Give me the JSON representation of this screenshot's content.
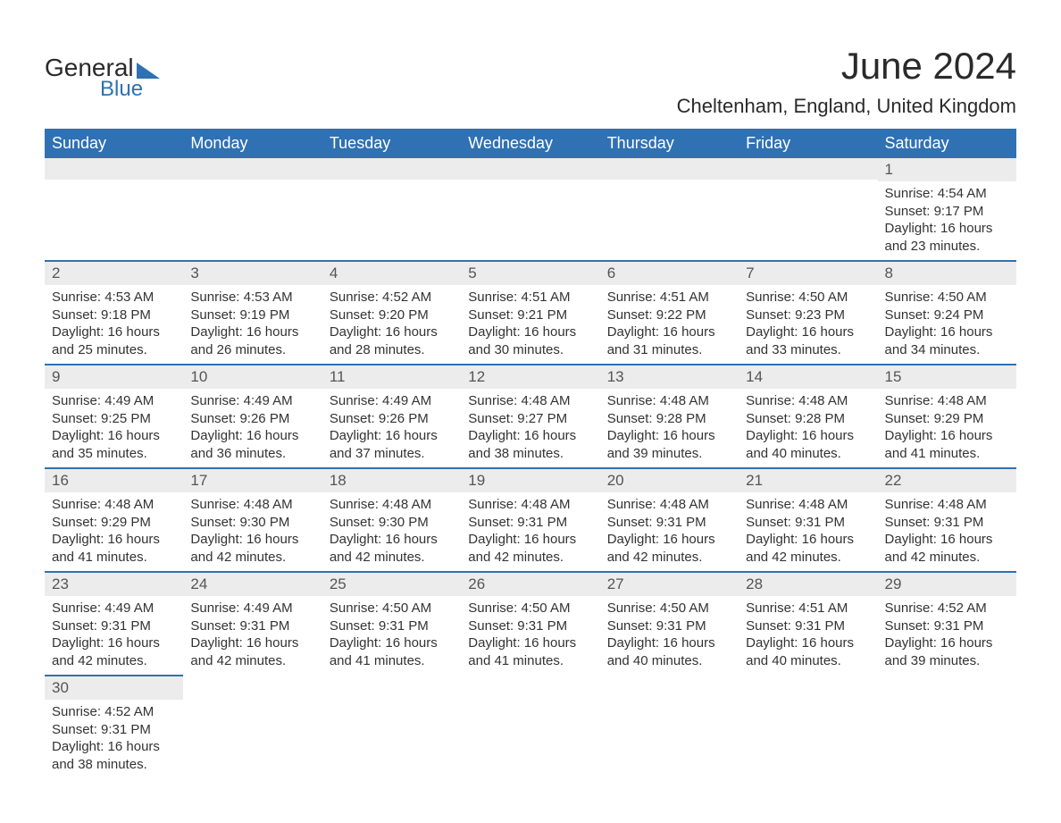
{
  "logo": {
    "general": "General",
    "blue": "Blue"
  },
  "title": "June 2024",
  "location": "Cheltenham, England, United Kingdom",
  "style": {
    "header_bg": "#2f71b3",
    "header_text": "#ffffff",
    "daynum_bg": "#ececec",
    "daynum_text": "#555555",
    "row_border": "#2f71b3",
    "body_text": "#333333",
    "th_fontsize": 18,
    "body_fontsize": 15,
    "title_fontsize": 42,
    "location_fontsize": 22
  },
  "day_names": [
    "Sunday",
    "Monday",
    "Tuesday",
    "Wednesday",
    "Thursday",
    "Friday",
    "Saturday"
  ],
  "weeks": [
    [
      null,
      null,
      null,
      null,
      null,
      null,
      {
        "n": "1",
        "sr": "Sunrise: 4:54 AM",
        "ss": "Sunset: 9:17 PM",
        "d1": "Daylight: 16 hours",
        "d2": "and 23 minutes."
      }
    ],
    [
      {
        "n": "2",
        "sr": "Sunrise: 4:53 AM",
        "ss": "Sunset: 9:18 PM",
        "d1": "Daylight: 16 hours",
        "d2": "and 25 minutes."
      },
      {
        "n": "3",
        "sr": "Sunrise: 4:53 AM",
        "ss": "Sunset: 9:19 PM",
        "d1": "Daylight: 16 hours",
        "d2": "and 26 minutes."
      },
      {
        "n": "4",
        "sr": "Sunrise: 4:52 AM",
        "ss": "Sunset: 9:20 PM",
        "d1": "Daylight: 16 hours",
        "d2": "and 28 minutes."
      },
      {
        "n": "5",
        "sr": "Sunrise: 4:51 AM",
        "ss": "Sunset: 9:21 PM",
        "d1": "Daylight: 16 hours",
        "d2": "and 30 minutes."
      },
      {
        "n": "6",
        "sr": "Sunrise: 4:51 AM",
        "ss": "Sunset: 9:22 PM",
        "d1": "Daylight: 16 hours",
        "d2": "and 31 minutes."
      },
      {
        "n": "7",
        "sr": "Sunrise: 4:50 AM",
        "ss": "Sunset: 9:23 PM",
        "d1": "Daylight: 16 hours",
        "d2": "and 33 minutes."
      },
      {
        "n": "8",
        "sr": "Sunrise: 4:50 AM",
        "ss": "Sunset: 9:24 PM",
        "d1": "Daylight: 16 hours",
        "d2": "and 34 minutes."
      }
    ],
    [
      {
        "n": "9",
        "sr": "Sunrise: 4:49 AM",
        "ss": "Sunset: 9:25 PM",
        "d1": "Daylight: 16 hours",
        "d2": "and 35 minutes."
      },
      {
        "n": "10",
        "sr": "Sunrise: 4:49 AM",
        "ss": "Sunset: 9:26 PM",
        "d1": "Daylight: 16 hours",
        "d2": "and 36 minutes."
      },
      {
        "n": "11",
        "sr": "Sunrise: 4:49 AM",
        "ss": "Sunset: 9:26 PM",
        "d1": "Daylight: 16 hours",
        "d2": "and 37 minutes."
      },
      {
        "n": "12",
        "sr": "Sunrise: 4:48 AM",
        "ss": "Sunset: 9:27 PM",
        "d1": "Daylight: 16 hours",
        "d2": "and 38 minutes."
      },
      {
        "n": "13",
        "sr": "Sunrise: 4:48 AM",
        "ss": "Sunset: 9:28 PM",
        "d1": "Daylight: 16 hours",
        "d2": "and 39 minutes."
      },
      {
        "n": "14",
        "sr": "Sunrise: 4:48 AM",
        "ss": "Sunset: 9:28 PM",
        "d1": "Daylight: 16 hours",
        "d2": "and 40 minutes."
      },
      {
        "n": "15",
        "sr": "Sunrise: 4:48 AM",
        "ss": "Sunset: 9:29 PM",
        "d1": "Daylight: 16 hours",
        "d2": "and 41 minutes."
      }
    ],
    [
      {
        "n": "16",
        "sr": "Sunrise: 4:48 AM",
        "ss": "Sunset: 9:29 PM",
        "d1": "Daylight: 16 hours",
        "d2": "and 41 minutes."
      },
      {
        "n": "17",
        "sr": "Sunrise: 4:48 AM",
        "ss": "Sunset: 9:30 PM",
        "d1": "Daylight: 16 hours",
        "d2": "and 42 minutes."
      },
      {
        "n": "18",
        "sr": "Sunrise: 4:48 AM",
        "ss": "Sunset: 9:30 PM",
        "d1": "Daylight: 16 hours",
        "d2": "and 42 minutes."
      },
      {
        "n": "19",
        "sr": "Sunrise: 4:48 AM",
        "ss": "Sunset: 9:31 PM",
        "d1": "Daylight: 16 hours",
        "d2": "and 42 minutes."
      },
      {
        "n": "20",
        "sr": "Sunrise: 4:48 AM",
        "ss": "Sunset: 9:31 PM",
        "d1": "Daylight: 16 hours",
        "d2": "and 42 minutes."
      },
      {
        "n": "21",
        "sr": "Sunrise: 4:48 AM",
        "ss": "Sunset: 9:31 PM",
        "d1": "Daylight: 16 hours",
        "d2": "and 42 minutes."
      },
      {
        "n": "22",
        "sr": "Sunrise: 4:48 AM",
        "ss": "Sunset: 9:31 PM",
        "d1": "Daylight: 16 hours",
        "d2": "and 42 minutes."
      }
    ],
    [
      {
        "n": "23",
        "sr": "Sunrise: 4:49 AM",
        "ss": "Sunset: 9:31 PM",
        "d1": "Daylight: 16 hours",
        "d2": "and 42 minutes."
      },
      {
        "n": "24",
        "sr": "Sunrise: 4:49 AM",
        "ss": "Sunset: 9:31 PM",
        "d1": "Daylight: 16 hours",
        "d2": "and 42 minutes."
      },
      {
        "n": "25",
        "sr": "Sunrise: 4:50 AM",
        "ss": "Sunset: 9:31 PM",
        "d1": "Daylight: 16 hours",
        "d2": "and 41 minutes."
      },
      {
        "n": "26",
        "sr": "Sunrise: 4:50 AM",
        "ss": "Sunset: 9:31 PM",
        "d1": "Daylight: 16 hours",
        "d2": "and 41 minutes."
      },
      {
        "n": "27",
        "sr": "Sunrise: 4:50 AM",
        "ss": "Sunset: 9:31 PM",
        "d1": "Daylight: 16 hours",
        "d2": "and 40 minutes."
      },
      {
        "n": "28",
        "sr": "Sunrise: 4:51 AM",
        "ss": "Sunset: 9:31 PM",
        "d1": "Daylight: 16 hours",
        "d2": "and 40 minutes."
      },
      {
        "n": "29",
        "sr": "Sunrise: 4:52 AM",
        "ss": "Sunset: 9:31 PM",
        "d1": "Daylight: 16 hours",
        "d2": "and 39 minutes."
      }
    ],
    [
      {
        "n": "30",
        "sr": "Sunrise: 4:52 AM",
        "ss": "Sunset: 9:31 PM",
        "d1": "Daylight: 16 hours",
        "d2": "and 38 minutes."
      },
      null,
      null,
      null,
      null,
      null,
      null
    ]
  ]
}
